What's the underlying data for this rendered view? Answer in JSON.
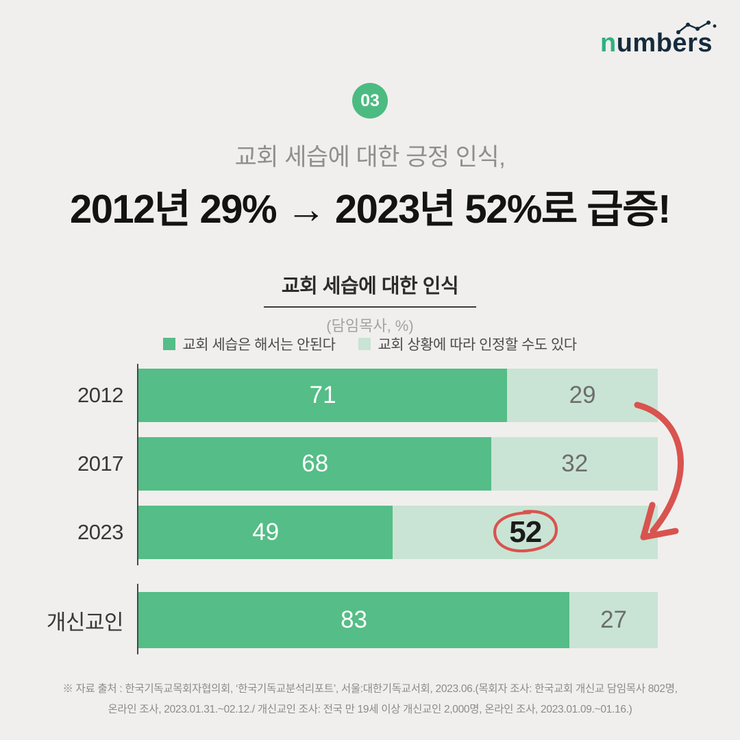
{
  "page": {
    "background": "#f0efed"
  },
  "logo": {
    "first_letter": "n",
    "rest": "umbers"
  },
  "badge": {
    "number": "03"
  },
  "header": {
    "subtitle": "교회 세습에 대한 긍정 인식,",
    "title": "2012년 29% → 2023년 52%로 급증!"
  },
  "chart_data": {
    "type": "bar",
    "orientation": "horizontal",
    "stacked": true,
    "title": "교회 세습에 대한 인식",
    "unit": "(담임목사, %)",
    "legend_position": "top",
    "categories": [
      "2012",
      "2017",
      "2023",
      "개신교인"
    ],
    "series": [
      {
        "name": "교회 세습은 해서는 안된다",
        "color": "#55bd87",
        "values": [
          71,
          68,
          49,
          83
        ]
      },
      {
        "name": "교회 상황에 따라 인정할 수도 있다",
        "color": "#c9e4d4",
        "values": [
          29,
          32,
          52,
          27
        ]
      }
    ],
    "rows": [
      {
        "label": "2012",
        "seg1_value": "71",
        "seg2_value": "29",
        "seg1_width": 71
      },
      {
        "label": "2017",
        "seg1_value": "68",
        "seg2_value": "32",
        "seg1_width": 68
      },
      {
        "label": "2023",
        "seg1_value": "49",
        "seg2_value": "52",
        "seg1_width": 49
      },
      {
        "label": "개신교인",
        "seg1_value": "83",
        "seg2_value": "27",
        "seg1_width": 83
      }
    ],
    "highlight": {
      "row": "2023",
      "value": "52",
      "style": "red hand-drawn circle with curved arrow from 2012 row"
    }
  },
  "legend": [
    {
      "label": "교회 세습은 해서는 안된다"
    },
    {
      "label": "교회 상황에 따라 인정할 수도 있다"
    }
  ],
  "footer": {
    "line1": "※ 자료 출처 : 한국기독교목회자협의회, ‘한국기독교분석리포트’, 서울:대한기독교서회, 2023.06.(목회자 조사: 한국교회 개신교 담임목사 802명,",
    "line2": "온라인 조사, 2023.01.31.~02.12./ 개신교인 조사: 전국 만 19세 이상 개신교인 2,000명, 온라인 조사, 2023.01.09.~01.16.)"
  },
  "colors": {
    "bg": "#f0efed",
    "bar-dark": "#55bd87",
    "bar-light": "#c9e4d4",
    "badge-green": "#4cbb81",
    "logo-navy": "#152b3d",
    "logo-green": "#2eb180",
    "red": "#d9534f",
    "title-black": "#131313",
    "subtitle-gray": "#8f8f8f"
  }
}
